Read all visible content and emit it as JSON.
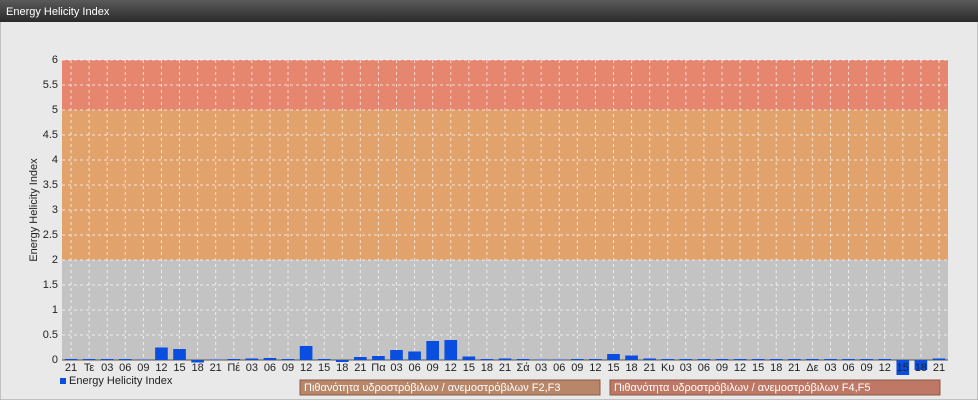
{
  "chart_data": {
    "type": "bar",
    "title": "Energy Helicity Index",
    "ylabel": "Energy Helicity Index",
    "categories": [
      "21",
      "Τε",
      "03",
      "06",
      "09",
      "12",
      "15",
      "18",
      "21",
      "Πέ",
      "03",
      "06",
      "09",
      "12",
      "15",
      "18",
      "21",
      "Πα",
      "03",
      "06",
      "09",
      "12",
      "15",
      "18",
      "21",
      "Σά",
      "03",
      "06",
      "09",
      "12",
      "15",
      "18",
      "21",
      "Κυ",
      "03",
      "06",
      "09",
      "12",
      "15",
      "18",
      "21",
      "Δε",
      "03",
      "06",
      "09",
      "12",
      "15",
      "18",
      "21"
    ],
    "series": [
      {
        "name": "Energy Helicity Index",
        "color": "#0a4ee0",
        "values": [
          0.02,
          0.02,
          0.02,
          0.02,
          0.01,
          0.25,
          0.22,
          -0.05,
          0.01,
          0.02,
          0.03,
          0.04,
          0.02,
          0.28,
          0.02,
          -0.04,
          0.06,
          0.08,
          0.2,
          0.17,
          0.38,
          0.4,
          0.07,
          0.02,
          0.03,
          0.02,
          0.01,
          0.01,
          0.02,
          0.02,
          0.12,
          0.09,
          0.03,
          0.02,
          0.02,
          0.02,
          0.02,
          0.02,
          0.02,
          0.02,
          0.02,
          0.02,
          0.02,
          0.02,
          0.02,
          0.02,
          -0.3,
          -0.2,
          0.03
        ]
      }
    ],
    "bands": [
      {
        "from": 2,
        "to": 5,
        "color": "#e2a26c",
        "label": "Πιθανότητα υδροστρόβιλων / ανεμοστρόβιλων F2,F3",
        "legend_color": "#b8876a"
      },
      {
        "from": 5,
        "to": 6,
        "color": "#e6866f",
        "label": "Πιθανότητα υδροστρόβιλων / ανεμοστρόβιλων F4,F5",
        "legend_color": "#bf7865"
      }
    ],
    "ylim": [
      0,
      6
    ],
    "yticks": [
      0,
      0.5,
      1,
      1.5,
      2,
      2.5,
      3,
      3.5,
      4,
      4.5,
      5,
      5.5,
      6
    ],
    "grid": true
  }
}
